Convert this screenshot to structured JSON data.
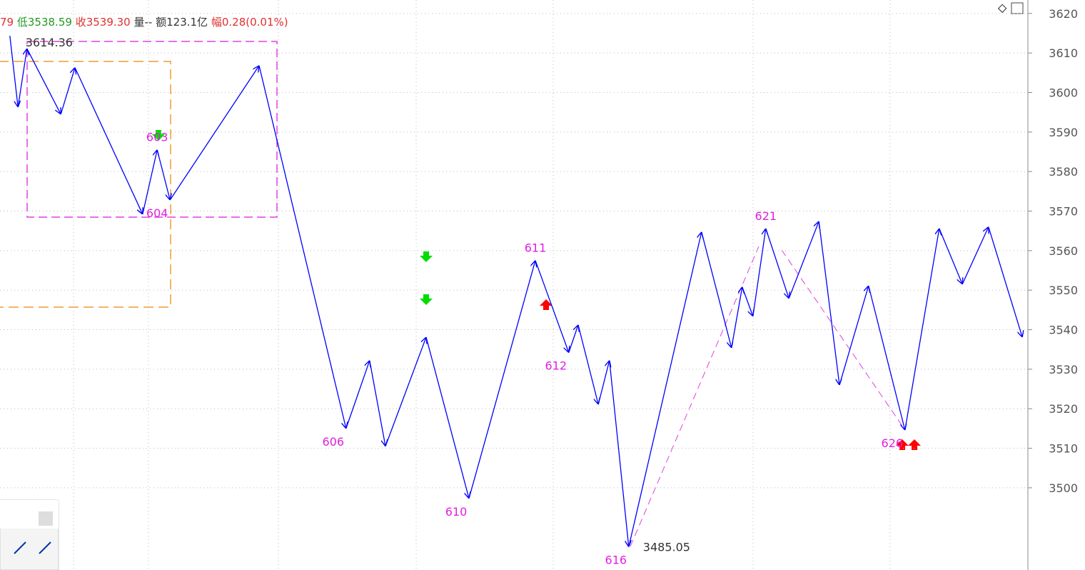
{
  "header": {
    "segments": [
      "79",
      "低3538.59",
      "收3539.30",
      "量--",
      "额123.1亿",
      "幅0.28(0.01%)"
    ]
  },
  "chart_data": {
    "type": "line",
    "grid": true,
    "series": [
      {
        "color": "#0000ff",
        "x": [
          2.3,
          4.2,
          6.3,
          14.2,
          17.5,
          33.3,
          36.7,
          39.7,
          60.5,
          80.8,
          86.3,
          90,
          99.5,
          109.5,
          125,
          132.8,
          135,
          139.7,
          142.3,
          146.8,
          163.8,
          170.8,
          173.3,
          175.8,
          178.8,
          184.2,
          191.2,
          196,
          202.8,
          211.3,
          219.3,
          224.7,
          230.8,
          238.7
        ],
        "values": [
          3614.36,
          3596.3,
          3611.1,
          3594.5,
          3606.3,
          3569.2,
          3585.5,
          3572.8,
          3606.8,
          3515.0,
          3532.2,
          3510.5,
          3538.1,
          3497.3,
          3557.5,
          3534.2,
          3541.2,
          3521.1,
          3532.2,
          3485.05,
          3564.7,
          3535.4,
          3550.8,
          3543.4,
          3565.6,
          3547.9,
          3567.4,
          3526.0,
          3551.1,
          3514.6,
          3565.6,
          3551.5,
          3566.0,
          3538.1
        ],
        "pivot_labels": [
          null,
          null,
          null,
          null,
          null,
          null,
          "603",
          "604",
          null,
          "606",
          null,
          null,
          null,
          "610",
          "611",
          "612",
          null,
          null,
          null,
          "616",
          null,
          null,
          null,
          null,
          "621",
          null,
          null,
          null,
          null,
          "626",
          null,
          null,
          null,
          null
        ]
      }
    ],
    "xlim": [
      0,
      240
    ],
    "ylim": [
      3479.2,
      3623.4
    ],
    "yticks": [
      3500,
      3510,
      3520,
      3530,
      3540,
      3550,
      3560,
      3570,
      3580,
      3590,
      3600,
      3610,
      3620
    ]
  }
}
